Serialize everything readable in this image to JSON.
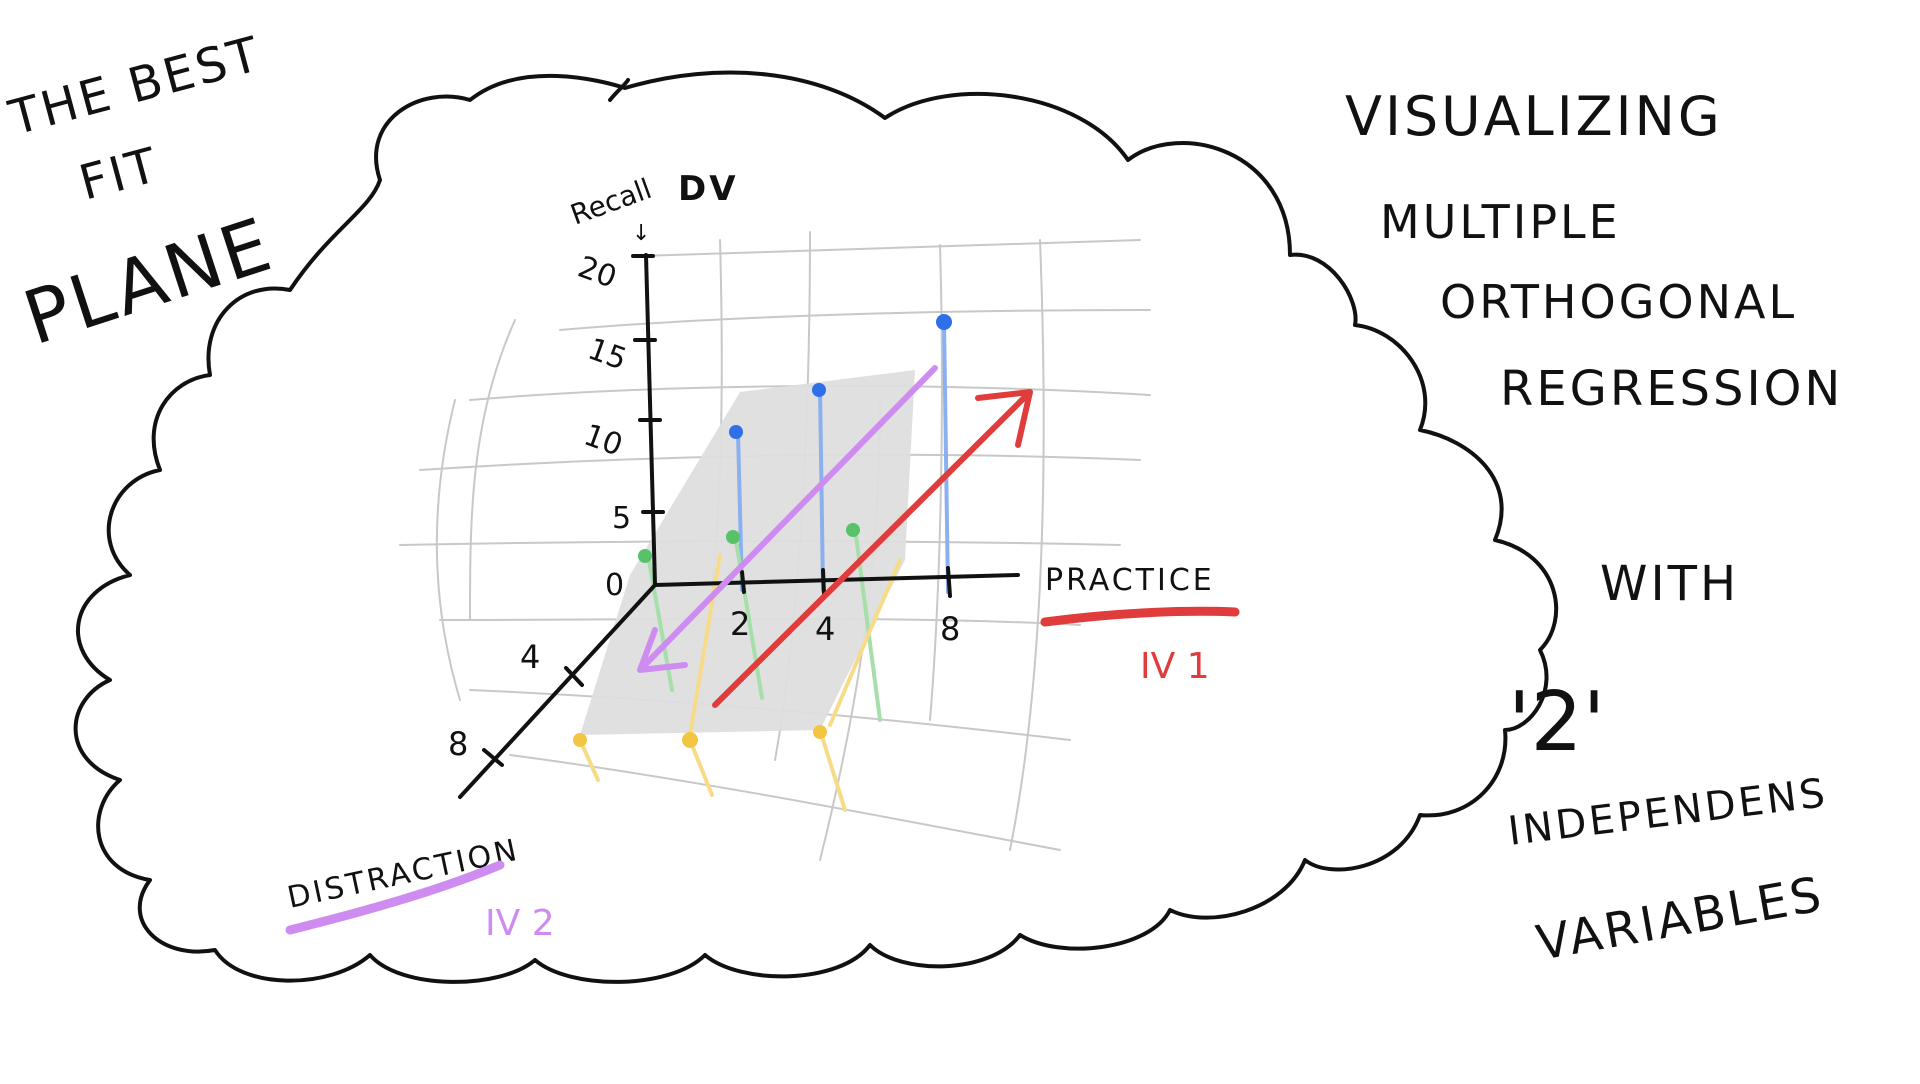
{
  "left_title": {
    "line1": "THE BEST",
    "line2": "FIT",
    "line3": "PLANE"
  },
  "right_title": {
    "line1": "VISUALIZING",
    "line2": "MULTIPLE",
    "line3": "ORTHOGONAL",
    "line4": "REGRESSION",
    "line5": "WITH",
    "line6": "'2'",
    "line7": "INDEPENDENS",
    "line8": "VARIABLES"
  },
  "axes": {
    "z_label": "Recall",
    "z_label_suffix": "DV",
    "z_ticks": [
      "0",
      "5",
      "10",
      "15",
      "20"
    ],
    "x_label": "PRACTICE",
    "x_tag": "IV 1",
    "x_ticks": [
      "2",
      "4",
      "8"
    ],
    "y_label": "DISTRACTION",
    "y_tag": "IV 2",
    "y_ticks": [
      "4",
      "8"
    ]
  },
  "colors": {
    "ink": "#111111",
    "grid": "#c8c8c8",
    "plane": "#dedede",
    "blue": "#2f6fe8",
    "green": "#58c26a",
    "yellow": "#f2c542",
    "red": "#e03c3c",
    "purple": "#cf8cf0"
  },
  "chart_data": {
    "type": "scatter",
    "title": "Multiple Orthogonal Regression with 2 Independent Variables",
    "xlabel": "PRACTICE",
    "ylabel": "DISTRACTION",
    "zlabel": "Recall",
    "xlim": [
      0,
      8
    ],
    "ylim": [
      0,
      8
    ],
    "zlim": [
      0,
      20
    ],
    "series": [
      {
        "name": "distraction 0",
        "color": "blue",
        "x": [
          2,
          4,
          8
        ],
        "distraction": [
          0,
          0,
          0
        ],
        "recall": [
          10,
          13,
          17
        ]
      },
      {
        "name": "distraction 4",
        "color": "green",
        "x": [
          2,
          4,
          8
        ],
        "distraction": [
          4,
          4,
          4
        ],
        "recall": [
          5,
          6,
          8
        ]
      },
      {
        "name": "distraction 8",
        "color": "yellow",
        "x": [
          2,
          4,
          8
        ],
        "distraction": [
          8,
          8,
          8
        ],
        "recall": [
          0,
          0,
          0
        ]
      }
    ],
    "annotations": [
      "best fit plane",
      "PRACTICE increases Recall",
      "DISTRACTION decreases Recall"
    ]
  }
}
